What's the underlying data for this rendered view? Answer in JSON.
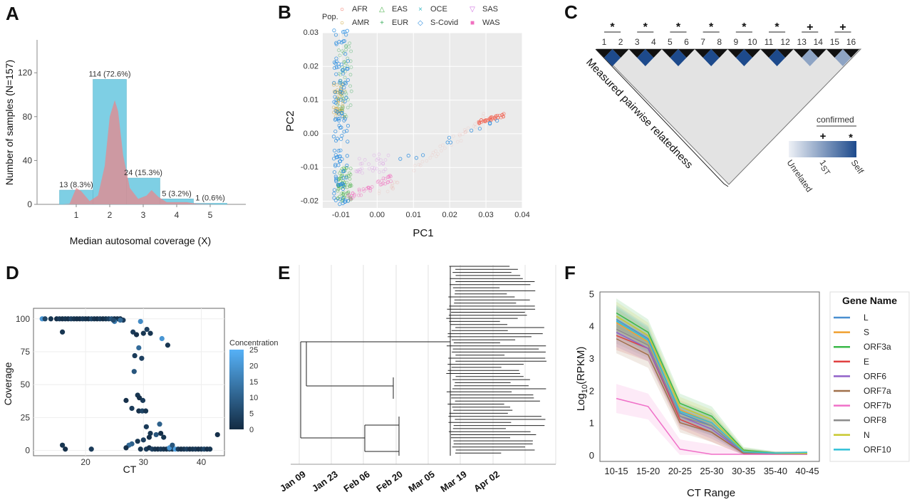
{
  "panels": {
    "A": {
      "label": "A",
      "chart_data": {
        "type": "bar",
        "categories": [
          "1",
          "2",
          "3",
          "4",
          "5"
        ],
        "values": [
          13,
          114,
          24,
          5,
          1
        ],
        "data_labels": [
          "13 (8.3%)",
          "114 (72.6%)",
          "24 (15.3%)",
          "5 (3.2%)",
          "1 (0.6%)"
        ],
        "xlabel": "Median autosomal coverage (X)",
        "ylabel": "Number of samples (N=157)",
        "yticks": [
          "0",
          "40",
          "80",
          "120"
        ],
        "xticks": [
          "1",
          "2",
          "3",
          "4",
          "5"
        ],
        "ylim": [
          0,
          150
        ],
        "colors": {
          "bar": "#7ecfe4",
          "density": "#e8878c"
        }
      }
    },
    "B": {
      "label": "B",
      "chart_data": {
        "type": "scatter",
        "xlabel": "PC1",
        "ylabel": "PC2",
        "xticks": [
          "-0.01",
          "0.00",
          "0.01",
          "0.02",
          "0.03",
          "0.04"
        ],
        "yticks": [
          "-0.02",
          "-0.01",
          "0.00",
          "0.01",
          "0.02",
          "0.03"
        ],
        "xlim": [
          -0.015,
          0.04
        ],
        "ylim": [
          -0.022,
          0.03
        ],
        "legend_title": "Pop.",
        "series": [
          {
            "name": "AFR",
            "marker": "○",
            "color": "#f06a5a"
          },
          {
            "name": "AMR",
            "marker": "○",
            "color": "#c8a030"
          },
          {
            "name": "EAS",
            "marker": "△",
            "color": "#4ab24a"
          },
          {
            "name": "EUR",
            "marker": "+",
            "color": "#3fae5f"
          },
          {
            "name": "OCE",
            "marker": "×",
            "color": "#3bb8c4"
          },
          {
            "name": "S-Covid",
            "marker": "◇",
            "color": "#2e8ee0"
          },
          {
            "name": "SAS",
            "marker": "▽",
            "color": "#d070e0"
          },
          {
            "name": "WAS",
            "marker": "■",
            "color": "#f070c0"
          }
        ]
      }
    },
    "C": {
      "label": "C",
      "pairs": [
        {
          "sym": "*",
          "a": "1",
          "b": "2",
          "v": 1.0
        },
        {
          "sym": "*",
          "a": "3",
          "b": "4",
          "v": 1.0
        },
        {
          "sym": "*",
          "a": "5",
          "b": "6",
          "v": 1.0
        },
        {
          "sym": "*",
          "a": "7",
          "b": "8",
          "v": 1.0
        },
        {
          "sym": "*",
          "a": "9",
          "b": "10",
          "v": 1.0
        },
        {
          "sym": "*",
          "a": "11",
          "b": "12",
          "v": 1.0
        },
        {
          "sym": "+",
          "a": "13",
          "b": "14",
          "v": 0.55
        },
        {
          "sym": "+",
          "a": "15",
          "b": "16",
          "v": 0.55
        }
      ],
      "triangle_label": "Measured pairwise relatedness",
      "legend": {
        "title": "confirmed",
        "plus": "+",
        "star": "*",
        "unrelated": "Unrelated",
        "first": "1",
        "first_sup": "ST",
        "self": "Self"
      },
      "colors": {
        "self": "#1d4a8c",
        "light": "#e6ebf3",
        "grey": "#e3e3e3"
      }
    },
    "D": {
      "label": "D",
      "chart_data": {
        "type": "scatter",
        "xlabel": "CT",
        "ylabel": "Coverage",
        "xticks": [
          "20",
          "30",
          "40"
        ],
        "yticks": [
          "0",
          "25",
          "50",
          "75",
          "100"
        ],
        "xlim": [
          11,
          44
        ],
        "ylim": [
          -4,
          108
        ],
        "legend_title": "Concentration",
        "legend_ticks": [
          "0",
          "5",
          "10",
          "15",
          "20",
          "25"
        ],
        "points": [
          [
            12.5,
            100,
            20
          ],
          [
            13,
            100,
            5
          ],
          [
            14,
            100,
            2
          ],
          [
            15,
            100,
            1
          ],
          [
            15.5,
            100,
            3
          ],
          [
            16,
            100,
            1
          ],
          [
            16.5,
            100,
            2
          ],
          [
            17,
            100,
            1
          ],
          [
            17.5,
            100,
            4
          ],
          [
            18,
            100,
            2
          ],
          [
            18.5,
            100,
            1
          ],
          [
            19,
            100,
            1
          ],
          [
            19.5,
            100,
            3
          ],
          [
            20,
            100,
            2
          ],
          [
            20.5,
            100,
            1
          ],
          [
            21,
            100,
            5
          ],
          [
            21.5,
            100,
            2
          ],
          [
            22,
            100,
            1
          ],
          [
            22.5,
            100,
            3
          ],
          [
            23,
            100,
            1
          ],
          [
            23.5,
            100,
            2
          ],
          [
            24,
            100,
            4
          ],
          [
            24.5,
            100,
            8
          ],
          [
            25,
            100,
            1
          ],
          [
            25.5,
            100,
            2
          ],
          [
            26,
            100,
            1
          ],
          [
            26.5,
            99,
            3
          ],
          [
            26,
            99,
            12
          ],
          [
            25,
            98,
            15
          ],
          [
            24.8,
            99,
            6
          ],
          [
            16,
            90,
            2
          ],
          [
            29.5,
            98,
            18
          ],
          [
            28.2,
            90,
            3
          ],
          [
            28.8,
            88,
            1
          ],
          [
            30,
            89,
            2
          ],
          [
            30.6,
            92,
            4
          ],
          [
            31.2,
            89,
            2
          ],
          [
            33.2,
            85,
            20
          ],
          [
            34.2,
            80,
            2
          ],
          [
            29.2,
            78,
            12
          ],
          [
            28.5,
            72,
            3
          ],
          [
            29.7,
            70,
            4
          ],
          [
            28.4,
            60,
            8
          ],
          [
            29,
            42,
            2
          ],
          [
            29.3,
            40,
            1
          ],
          [
            29.9,
            38,
            3
          ],
          [
            29.2,
            30,
            1
          ],
          [
            29.8,
            30,
            5
          ],
          [
            30.4,
            30,
            2
          ],
          [
            28,
            32,
            3
          ],
          [
            27,
            38,
            1
          ],
          [
            30.5,
            18,
            3
          ],
          [
            31.2,
            13,
            2
          ],
          [
            32.2,
            12,
            8
          ],
          [
            33,
            13,
            1
          ],
          [
            33.5,
            10,
            2
          ],
          [
            32.8,
            20,
            10
          ],
          [
            31,
            10,
            1
          ],
          [
            30,
            8,
            4
          ],
          [
            29,
            7,
            2
          ],
          [
            28,
            5,
            10
          ],
          [
            27.5,
            4,
            12
          ],
          [
            27,
            2,
            1
          ],
          [
            29.5,
            1,
            2
          ],
          [
            30.5,
            1,
            3
          ],
          [
            31,
            2,
            1
          ],
          [
            31.5,
            1,
            4
          ],
          [
            32,
            1,
            2
          ],
          [
            32.5,
            1,
            1
          ],
          [
            33,
            1,
            3
          ],
          [
            33.5,
            1,
            2
          ],
          [
            34,
            1,
            1
          ],
          [
            34.5,
            1,
            5
          ],
          [
            35,
            1,
            2
          ],
          [
            35.5,
            1,
            22
          ],
          [
            36,
            1,
            3
          ],
          [
            36.5,
            1,
            1
          ],
          [
            37,
            1,
            2
          ],
          [
            37.5,
            1,
            4
          ],
          [
            38,
            1,
            1
          ],
          [
            38.5,
            1,
            2
          ],
          [
            39,
            1,
            3
          ],
          [
            39.5,
            1,
            1
          ],
          [
            40,
            1,
            2
          ],
          [
            40.5,
            1,
            5
          ],
          [
            41,
            1,
            1
          ],
          [
            41.5,
            1,
            2
          ],
          [
            42.8,
            12,
            1
          ],
          [
            34.5,
            2,
            20
          ],
          [
            35,
            4,
            8
          ],
          [
            16,
            4,
            2
          ],
          [
            16.5,
            1,
            1
          ],
          [
            21,
            1,
            3
          ]
        ]
      }
    },
    "E": {
      "label": "E",
      "xticks": [
        "Jan 09",
        "Jan 23",
        "Feb 06",
        "Feb 20",
        "Mar 05",
        "Mar 19",
        "Apr 02"
      ]
    },
    "F": {
      "label": "F",
      "chart_data": {
        "type": "line",
        "categories": [
          "10-15",
          "15-20",
          "20-25",
          "25-30",
          "30-35",
          "35-40",
          "40-45"
        ],
        "xlabel": "CT Range",
        "ylabel": "Log",
        "ylabel_sub": "10",
        "ylabel_rest": "(RPKM)",
        "yticks": [
          "0",
          "1",
          "2",
          "3",
          "4",
          "5"
        ],
        "ylim": [
          -0.2,
          5.05
        ],
        "legend_title": "Gene Name",
        "series": [
          {
            "name": "L",
            "color": "#4a8fd0",
            "values": [
              4.2,
              3.6,
              1.3,
              0.9,
              0.05,
              0.04,
              0.05
            ]
          },
          {
            "name": "S",
            "color": "#f0a030",
            "values": [
              4.1,
              3.5,
              1.4,
              1.0,
              0.1,
              0.05,
              0.04
            ]
          },
          {
            "name": "ORF3a",
            "color": "#3bb84a",
            "values": [
              4.4,
              3.8,
              1.6,
              1.2,
              0.15,
              0.06,
              0.05
            ]
          },
          {
            "name": "E",
            "color": "#e04040",
            "values": [
              3.7,
              3.3,
              1.1,
              0.7,
              0.05,
              0.03,
              0.03
            ]
          },
          {
            "name": "ORF6",
            "color": "#9060c8",
            "values": [
              3.8,
              3.3,
              1.2,
              0.8,
              0.06,
              0.03,
              0.03
            ]
          },
          {
            "name": "ORF7a",
            "color": "#a0704a",
            "values": [
              3.6,
              3.1,
              1.0,
              0.7,
              0.05,
              0.04,
              0.03
            ]
          },
          {
            "name": "ORF7b",
            "color": "#f070c8",
            "values": [
              1.75,
              1.5,
              0.18,
              0.02,
              0.02,
              0.02,
              0.02
            ]
          },
          {
            "name": "ORF8",
            "color": "#8c8c8c",
            "values": [
              3.9,
              3.4,
              1.2,
              0.9,
              0.08,
              0.04,
              0.04
            ]
          },
          {
            "name": "N",
            "color": "#c8c830",
            "values": [
              4.3,
              3.7,
              1.5,
              1.1,
              0.12,
              0.05,
              0.05
            ]
          },
          {
            "name": "ORF10",
            "color": "#30c0d8",
            "values": [
              4.15,
              3.55,
              1.35,
              1.0,
              0.1,
              0.06,
              0.08
            ]
          }
        ]
      }
    }
  }
}
